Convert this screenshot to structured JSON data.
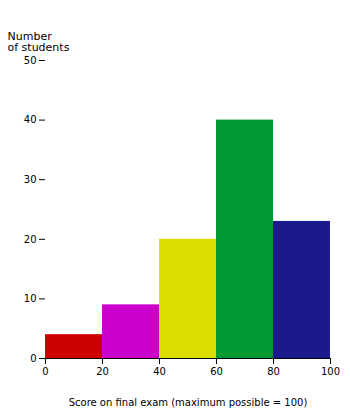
{
  "chart_data": {
    "type": "histogram",
    "xlabel": "Score on final exam (maximum possible = 100)",
    "ylabel": "Number\nof students",
    "bins": [
      0,
      20,
      40,
      60,
      80,
      100
    ],
    "values": [
      4,
      9,
      20,
      40,
      23
    ],
    "colors": [
      "#cc0000",
      "#cc00cc",
      "#dddd00",
      "#009933",
      "#1a1a8c"
    ],
    "xlim": [
      0,
      100
    ],
    "ylim": [
      0,
      50
    ],
    "xticks": [
      0,
      20,
      40,
      60,
      80,
      100
    ],
    "yticks": [
      0,
      10,
      20,
      30,
      40,
      50
    ],
    "grid": false
  }
}
